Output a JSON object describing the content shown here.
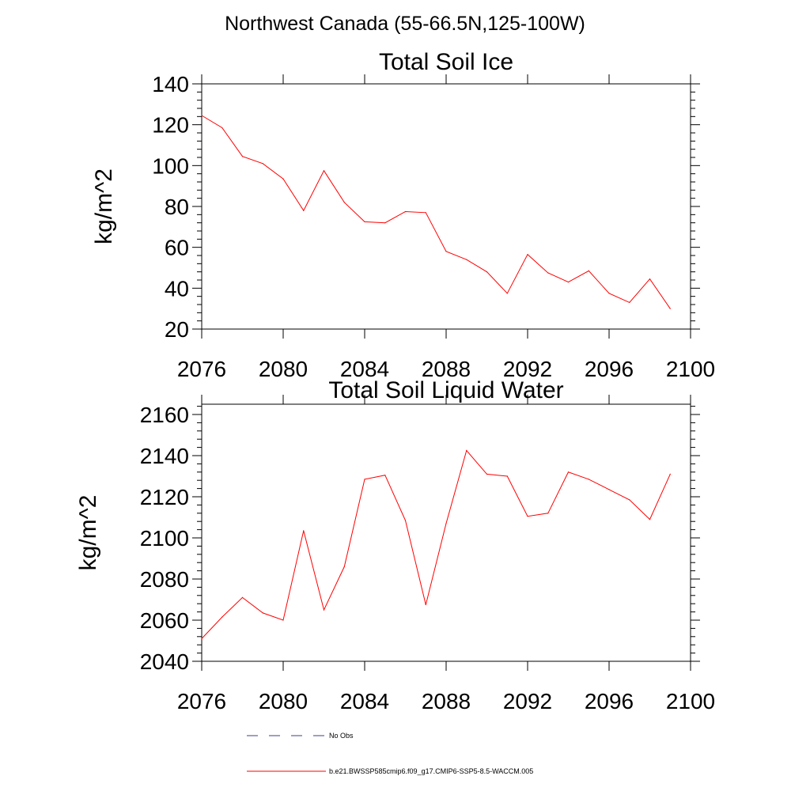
{
  "figure": {
    "title": "Northwest Canada (55-66.5N,125-100W)"
  },
  "colors": {
    "model_line": "#ff0000",
    "obs_line": "#3b3f8f",
    "axis": "#000000"
  },
  "chart_data": [
    {
      "type": "line",
      "title": "Total Soil Ice",
      "xlabel": "",
      "ylabel": "kg/m^2",
      "xlim": [
        2076,
        2100
      ],
      "ylim": [
        20,
        140
      ],
      "xticks": [
        2076,
        2080,
        2084,
        2088,
        2092,
        2096,
        2100
      ],
      "yticks": [
        20,
        40,
        60,
        80,
        100,
        120,
        140
      ],
      "series": [
        {
          "name": "b.e21.BWSSP585cmip6.f09_g17.CMIP6-SSP5-8.5-WACCM.005",
          "x": [
            2076,
            2077,
            2078,
            2079,
            2080,
            2081,
            2082,
            2083,
            2084,
            2085,
            2086,
            2087,
            2088,
            2089,
            2090,
            2091,
            2092,
            2093,
            2094,
            2095,
            2096,
            2097,
            2098,
            2099
          ],
          "y": [
            124.5,
            118.5,
            104.5,
            101,
            93.5,
            78,
            97.5,
            82,
            72.5,
            72,
            77.5,
            77,
            58,
            54,
            48,
            37.5,
            56.5,
            47.5,
            43,
            48.5,
            37.5,
            33,
            44.5,
            30
          ]
        }
      ]
    },
    {
      "type": "line",
      "title": "Total Soil Liquid Water",
      "xlabel": "",
      "ylabel": "kg/m^2",
      "xlim": [
        2076,
        2100
      ],
      "ylim": [
        2040,
        2165
      ],
      "xticks": [
        2076,
        2080,
        2084,
        2088,
        2092,
        2096,
        2100
      ],
      "yticks": [
        2040,
        2060,
        2080,
        2100,
        2120,
        2140,
        2160
      ],
      "series": [
        {
          "name": "b.e21.BWSSP585cmip6.f09_g17.CMIP6-SSP5-8.5-WACCM.005",
          "x": [
            2076,
            2077,
            2078,
            2079,
            2080,
            2081,
            2082,
            2083,
            2084,
            2085,
            2086,
            2087,
            2088,
            2089,
            2090,
            2091,
            2092,
            2093,
            2094,
            2095,
            2096,
            2097,
            2098,
            2099
          ],
          "y": [
            2051,
            2061.5,
            2071,
            2063.5,
            2060,
            2103.5,
            2065,
            2086,
            2128.5,
            2130.5,
            2108.5,
            2067.5,
            2107,
            2142.5,
            2131,
            2130,
            2110.5,
            2112,
            2132,
            2128.5,
            2123.5,
            2118.5,
            2109,
            2131
          ]
        }
      ]
    }
  ],
  "legend": {
    "entries": [
      {
        "label": "No Obs",
        "style": "dashed"
      },
      {
        "label": "b.e21.BWSSP585cmip6.f09_g17.CMIP6-SSP5-8.5-WACCM.005",
        "style": "solid"
      }
    ]
  }
}
